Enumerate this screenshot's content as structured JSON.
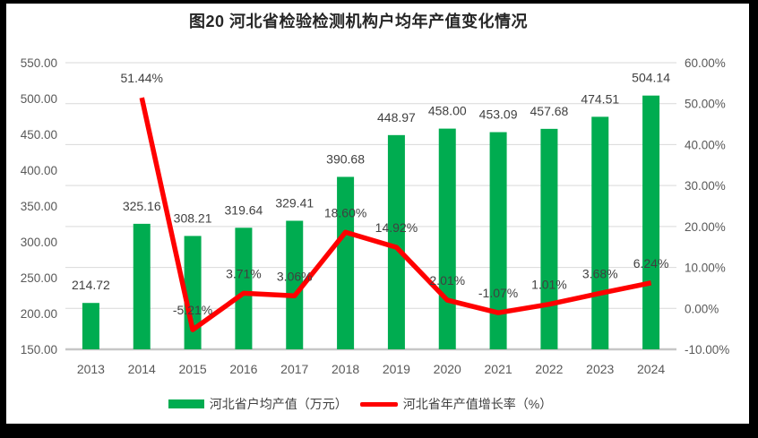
{
  "title": "图20 河北省检验检测机构户均年产值变化情况",
  "chart_data": {
    "type": "bar",
    "subtype": "combo-bar-line-dual-axis",
    "categories": [
      "2013",
      "2014",
      "2015",
      "2016",
      "2017",
      "2018",
      "2019",
      "2020",
      "2021",
      "2022",
      "2023",
      "2024"
    ],
    "series": [
      {
        "name": "河北省户均产值（万元）",
        "type": "bar",
        "axis": "primary-left",
        "color": "#00AC50",
        "values": [
          214.72,
          325.16,
          308.21,
          319.64,
          329.41,
          390.68,
          448.97,
          458.0,
          453.09,
          457.68,
          474.51,
          504.14
        ]
      },
      {
        "name": "河北省年产值增长率（%）",
        "type": "line",
        "axis": "secondary-right",
        "color": "#FF0000",
        "values": [
          null,
          51.44,
          -5.21,
          3.71,
          3.06,
          18.6,
          14.92,
          2.01,
          -1.07,
          1.01,
          3.68,
          6.24
        ]
      }
    ],
    "primary_axis": {
      "min": 150,
      "max": 550,
      "step": 50,
      "tick_labels": [
        "150.00",
        "200.00",
        "250.00",
        "300.00",
        "350.00",
        "400.00",
        "450.00",
        "500.00",
        "550.00"
      ]
    },
    "secondary_axis": {
      "min": -10,
      "max": 60,
      "step": 10,
      "tick_labels": [
        "-10.00%",
        "0.00%",
        "10.00%",
        "20.00%",
        "30.00%",
        "40.00%",
        "50.00%",
        "60.00%"
      ]
    },
    "grid": true,
    "data_labels": true,
    "legend_position": "bottom"
  },
  "colors": {
    "bar": "#00AC50",
    "line": "#FF0000",
    "gridline": "#D9D9D9",
    "axis_line": "#C6C6C6",
    "axis_text": "#595959",
    "label_text": "#404040",
    "title_text": "#262626",
    "frame": "#000000",
    "background": "#FFFFFF"
  }
}
